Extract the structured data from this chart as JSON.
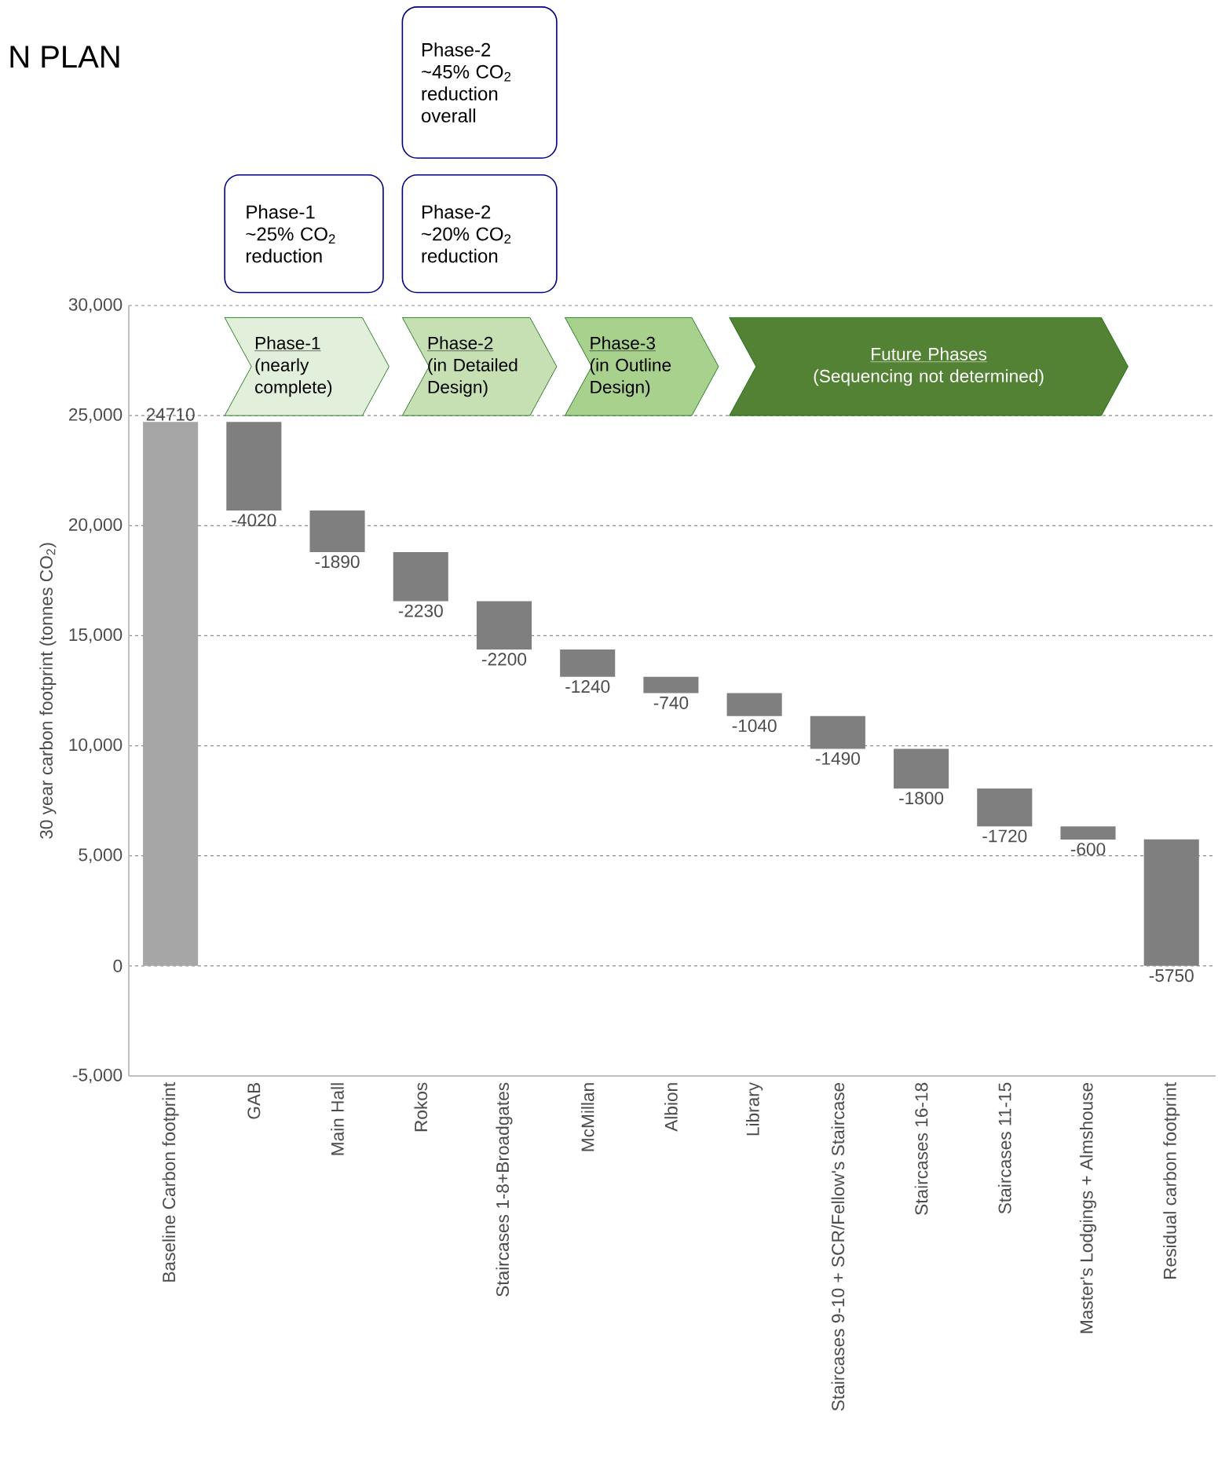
{
  "chart_data": {
    "type": "bar",
    "title": "N PLAN",
    "ylabel": "30 year carbon footprint (tonnes CO$_{2}$)",
    "categories": [
      "Baseline Carbon footprint",
      "GAB",
      "Main Hall",
      "Rokos",
      "Staircases 1-8+Broadgates",
      "McMillan",
      "Albion",
      "Library",
      "Staircases 9-10 + SCR/Fellow's Staircase",
      "Staircases 16-18",
      "Staircases 11-15",
      "Master's Lodgings + Almshouse",
      "Residual carbon footprint"
    ],
    "values": [
      24710,
      -4020,
      -1890,
      -2230,
      -2200,
      -1240,
      -740,
      -1040,
      -1490,
      -1800,
      -1720,
      -600,
      -5750
    ],
    "base": [
      0,
      24710,
      20690,
      18800,
      16570,
      14370,
      13130,
      12390,
      11350,
      9860,
      8060,
      6340,
      5750
    ],
    "colors": [
      "#a6a6a6",
      "#7f7f7f",
      "#7f7f7f",
      "#7f7f7f",
      "#7f7f7f",
      "#7f7f7f",
      "#7f7f7f",
      "#7f7f7f",
      "#7f7f7f",
      "#7f7f7f",
      "#7f7f7f",
      "#7f7f7f",
      "#7f7f7f"
    ],
    "data_labels": true,
    "ylim": [
      -5000,
      30000
    ],
    "yticks": [
      {
        "value": -5000,
        "label": "-5,000"
      },
      {
        "value": 0,
        "label": "0"
      },
      {
        "value": 5000,
        "label": "5,000"
      },
      {
        "value": 10000,
        "label": "10,000"
      },
      {
        "value": 15000,
        "label": "15,000"
      },
      {
        "value": 20000,
        "label": "20,000"
      },
      {
        "value": 25000,
        "label": "25,000"
      },
      {
        "value": 30000,
        "label": "30,000"
      }
    ],
    "grid": "y",
    "annotations": [
      "Phase-2 ~45% CO$_{2}$ reduction overall",
      "Phase-1 ~25% CO$_{2}$ reduction",
      "Phase-2 ~20% CO$_{2}$ reduction",
      "Phase-1",
      "(nearly complete)",
      "Phase-2",
      "(in Detailed Design)",
      "Phase-3",
      "(in Outline Design)",
      "Future Phases",
      "(Sequencing not determined)"
    ]
  }
}
